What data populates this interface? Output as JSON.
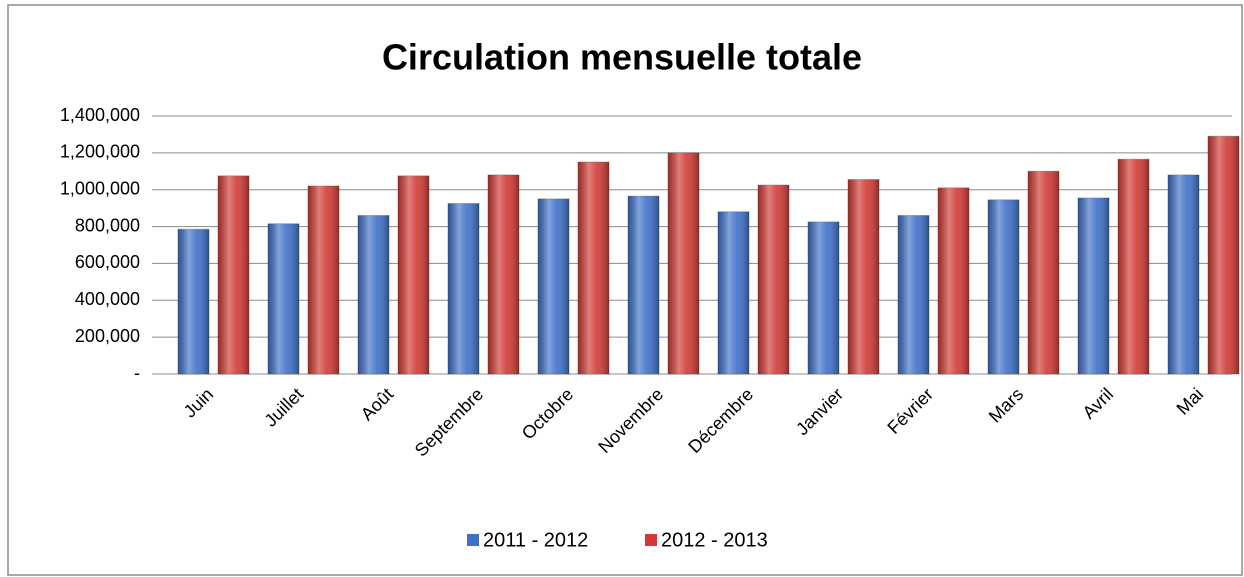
{
  "chart_data": {
    "type": "bar",
    "title": "Circulation mensuelle totale",
    "categories": [
      "Juin",
      "Juillet",
      "Août",
      "Septembre",
      "Octobre",
      "Novembre",
      "Décembre",
      "Janvier",
      "Février",
      "Mars",
      "Avril",
      "Mai"
    ],
    "series": [
      {
        "name": "2011 - 2012",
        "color": "#3f71c8",
        "values": [
          785000,
          815000,
          860000,
          925000,
          950000,
          965000,
          880000,
          825000,
          860000,
          945000,
          955000,
          1080000
        ]
      },
      {
        "name": "2012 - 2013",
        "color": "#d13a35",
        "values": [
          1075000,
          1020000,
          1075000,
          1080000,
          1150000,
          1200000,
          1025000,
          1055000,
          1010000,
          1100000,
          1165000,
          1290000
        ]
      }
    ],
    "ylim": [
      0,
      1400000
    ],
    "yticks": [
      {
        "value": 0,
        "label": "-"
      },
      {
        "value": 200000,
        "label": "200,000"
      },
      {
        "value": 400000,
        "label": "400,000"
      },
      {
        "value": 600000,
        "label": "600,000"
      },
      {
        "value": 800000,
        "label": "800,000"
      },
      {
        "value": 1000000,
        "label": "1,000,000"
      },
      {
        "value": 1200000,
        "label": "1,200,000"
      },
      {
        "value": 1400000,
        "label": "1,400,000"
      }
    ],
    "grid": true,
    "legend": "bottom"
  }
}
